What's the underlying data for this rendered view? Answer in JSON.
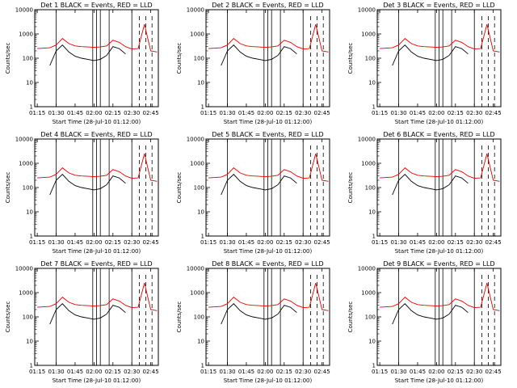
{
  "colors": {
    "black_series": "#000000",
    "red_series": "#e00000",
    "axes": "#000000",
    "background": "#ffffff"
  },
  "chart_data": {
    "type": "line",
    "grid": "off",
    "shared": {
      "ylabel": "Counts/sec",
      "xlabel": "Start Time (28-Jul-10 01:12:00)",
      "yscale": "log",
      "ylim": [
        1,
        10000
      ],
      "yticks": [
        1,
        10,
        100,
        1000,
        10000
      ],
      "ytick_labels": [
        "1",
        "10",
        "100",
        "1000",
        "10000"
      ],
      "xlim_minutes": [
        "01:13",
        "02:51"
      ],
      "xticks": [
        "01:15",
        "01:30",
        "01:45",
        "02:00",
        "02:15",
        "02:30",
        "02:45"
      ],
      "x": [
        "01:15",
        "01:20",
        "01:25",
        "01:30",
        "01:35",
        "01:40",
        "01:45",
        "01:50",
        "01:55",
        "02:00",
        "02:05",
        "02:10",
        "02:15",
        "02:20",
        "02:25",
        "02:30",
        "02:35",
        "02:40",
        "02:45",
        "02:50"
      ],
      "series": [
        {
          "name": "Events",
          "color": "black",
          "values": [
            null,
            null,
            50,
            200,
            350,
            180,
            120,
            100,
            90,
            80,
            90,
            130,
            300,
            250,
            150,
            null,
            null,
            null,
            null,
            null
          ]
        },
        {
          "name": "LLD",
          "color": "red",
          "values": [
            250,
            260,
            270,
            350,
            650,
            400,
            320,
            300,
            290,
            280,
            290,
            320,
            550,
            450,
            300,
            240,
            250,
            2500,
            200,
            180
          ]
        }
      ],
      "vertical_solid_lines": [
        "01:30",
        "01:59",
        "02:02",
        "02:05",
        "02:12",
        "02:30"
      ],
      "vertical_dashed_lines": [
        "02:36",
        "02:41",
        "02:46"
      ]
    },
    "panels": [
      {
        "title": "Det  1  BLACK = Events, RED = LLD"
      },
      {
        "title": "Det  2  BLACK = Events, RED = LLD"
      },
      {
        "title": "Det  3  BLACK = Events, RED = LLD"
      },
      {
        "title": "Det  4  BLACK = Events, RED = LLD"
      },
      {
        "title": "Det  5  BLACK = Events, RED = LLD"
      },
      {
        "title": "Det  6  BLACK = Events, RED = LLD"
      },
      {
        "title": "Det  7  BLACK = Events, RED = LLD"
      },
      {
        "title": "Det  8  BLACK = Events, RED = LLD"
      },
      {
        "title": "Det  9  BLACK = Events, RED = LLD"
      }
    ]
  }
}
